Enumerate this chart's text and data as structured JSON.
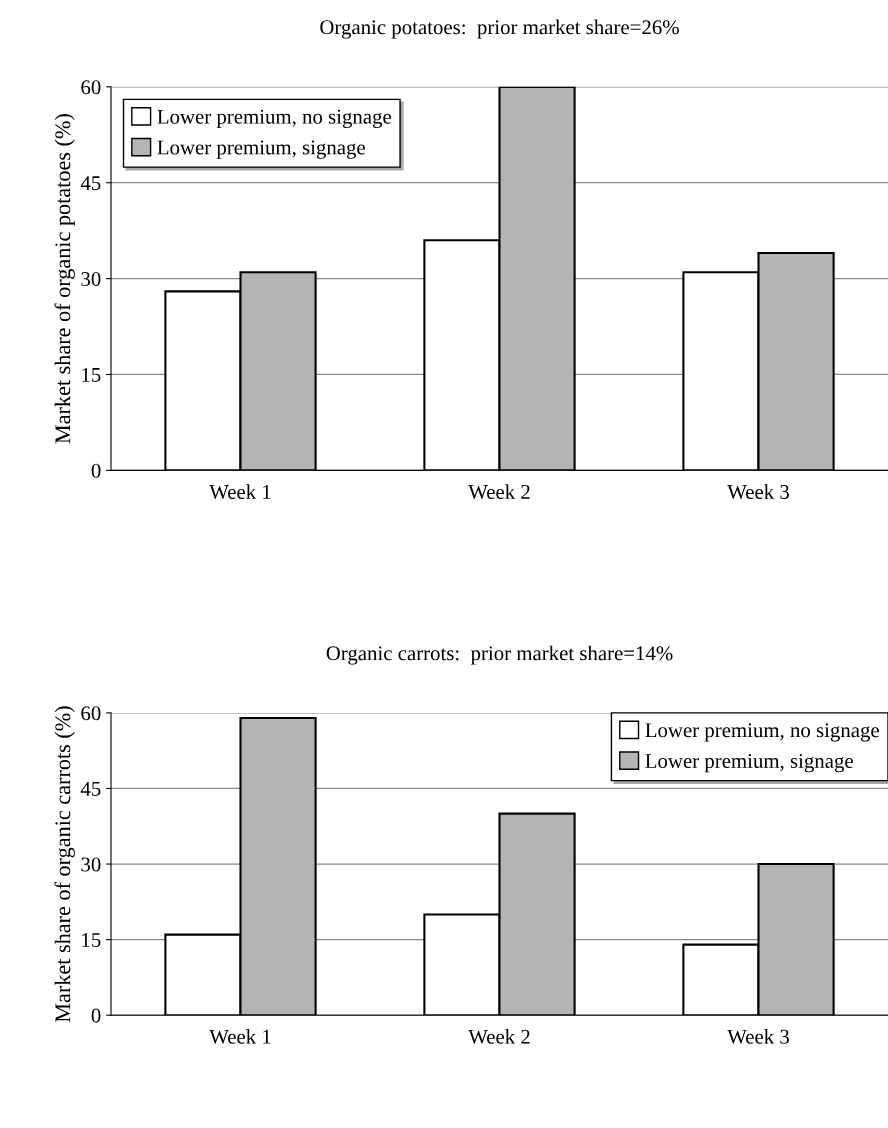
{
  "chart_data": [
    {
      "type": "bar",
      "title": "Organic potatoes:  prior market share=26%",
      "ylabel": "Market share of organic potatoes (%)",
      "categories": [
        "Week 1",
        "Week 2",
        "Week 3"
      ],
      "series": [
        {
          "name": "Lower premium, no signage",
          "color": "#ffffff",
          "values": [
            28,
            36,
            31
          ]
        },
        {
          "name": "Lower premium, signage",
          "color": "#b4b4b4",
          "values": [
            31,
            60,
            34
          ]
        }
      ],
      "ylim": [
        0,
        60
      ],
      "yticks": [
        0,
        15,
        30,
        45,
        60
      ],
      "grid": "y",
      "legend": "top left"
    },
    {
      "type": "bar",
      "title": "Organic carrots:  prior market share=14%",
      "ylabel": "Market share of organic carrots (%)",
      "categories": [
        "Week 1",
        "Week 2",
        "Week 3"
      ],
      "series": [
        {
          "name": "Lower premium, no signage",
          "color": "#ffffff",
          "values": [
            16,
            20,
            14
          ]
        },
        {
          "name": "Lower premium, signage",
          "color": "#b4b4b4",
          "values": [
            59,
            40,
            30
          ]
        }
      ],
      "ylim": [
        0,
        60
      ],
      "yticks": [
        0,
        15,
        30,
        45,
        60
      ],
      "grid": "y",
      "legend": "top right"
    }
  ]
}
